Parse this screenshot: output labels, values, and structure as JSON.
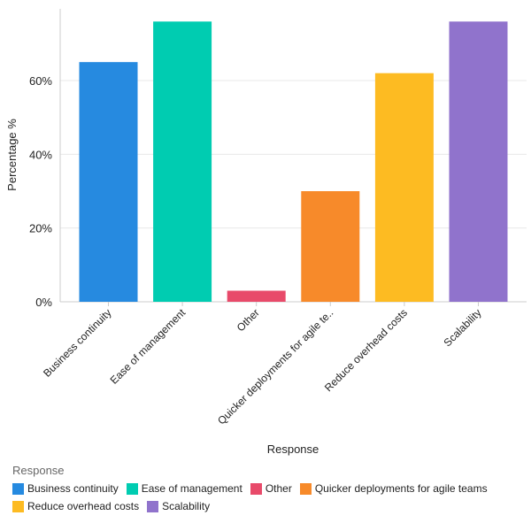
{
  "chart_data": {
    "type": "bar",
    "categories": [
      "Business continuity",
      "Ease of management",
      "Other",
      "Quicker deployments for agile teams",
      "Reduce overhead costs",
      "Scalability"
    ],
    "tick_labels": [
      "Business continuity",
      "Ease of management",
      "Other",
      "Quicker deployments for agile te..",
      "Reduce overhead costs",
      "Scalability"
    ],
    "values": [
      65,
      76,
      3,
      30,
      62,
      76
    ],
    "colors": [
      "#268ae0",
      "#00ccb1",
      "#e84a6a",
      "#f78a2a",
      "#fdbb22",
      "#9073cc"
    ],
    "xlabel": "Response",
    "ylabel": "Percentage %",
    "ylim": [
      0,
      79
    ],
    "yticks": [
      0,
      20,
      40,
      60
    ],
    "ytick_labels": [
      "0%",
      "20%",
      "40%",
      "60%"
    ],
    "grid": true,
    "legend": {
      "title": "Response",
      "placement": "bottom-left",
      "items": [
        "Business continuity",
        "Ease of management",
        "Other",
        "Quicker deployments for agile teams",
        "Reduce overhead costs",
        "Scalability"
      ]
    }
  }
}
